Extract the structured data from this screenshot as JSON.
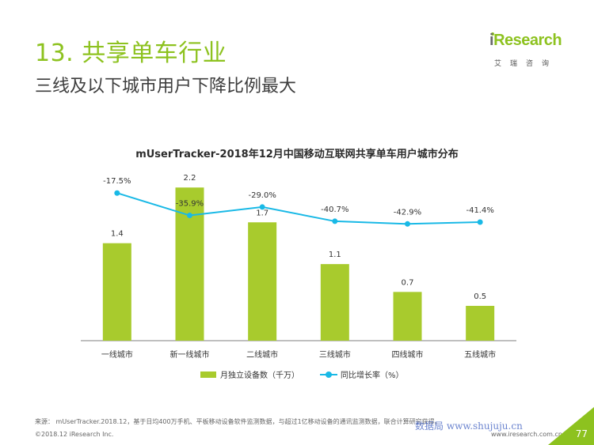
{
  "slide": {
    "title": "13. 共享单车行业",
    "subtitle": "三线及以下城市用户下降比例最大"
  },
  "logo": {
    "word_i": "i",
    "word_rest": "Research",
    "sub": "艾瑞咨询"
  },
  "chart_data": {
    "type": "bar",
    "title": "mUserTracker-2018年12月中国移动互联网共享单车用户城市分布",
    "categories": [
      "一线城市",
      "新一线城市",
      "二线城市",
      "三线城市",
      "四线城市",
      "五线城市"
    ],
    "series": [
      {
        "name": "月独立设备数（千万）",
        "type": "bar",
        "values": [
          1.4,
          2.2,
          1.7,
          1.1,
          0.7,
          0.5
        ],
        "labels": [
          "1.4",
          "2.2",
          "1.7",
          "1.1",
          "0.7",
          "0.5"
        ],
        "color": "#a8cb2d"
      },
      {
        "name": "同比增长率（%）",
        "type": "line",
        "values": [
          -17.5,
          -35.9,
          -29.0,
          -40.7,
          -42.9,
          -41.4
        ],
        "labels": [
          "-17.5%",
          "-35.9%",
          "-29.0%",
          "-40.7%",
          "-42.9%",
          "-41.4%"
        ],
        "color": "#19b9e6"
      }
    ],
    "bar_ylim": [
      0,
      2.6
    ],
    "line_ylim": [
      -70,
      -5
    ],
    "grid": false,
    "legend_position": "bottom"
  },
  "footer": {
    "source": "来源：  mUserTracker.2018.12，基于日均400万手机、平板移动设备软件监测数据，与超过1亿移动设备的通讯监测数据，联合计算研究获得。",
    "watermark": "数据局  www.shujuju.cn",
    "copyright": "©2018.12 iResearch Inc.",
    "site": "www.iresearch.com.cn",
    "page": "77"
  },
  "colors": {
    "accent": "#8dc21f",
    "bar": "#a8cb2d",
    "line": "#19b9e6"
  }
}
